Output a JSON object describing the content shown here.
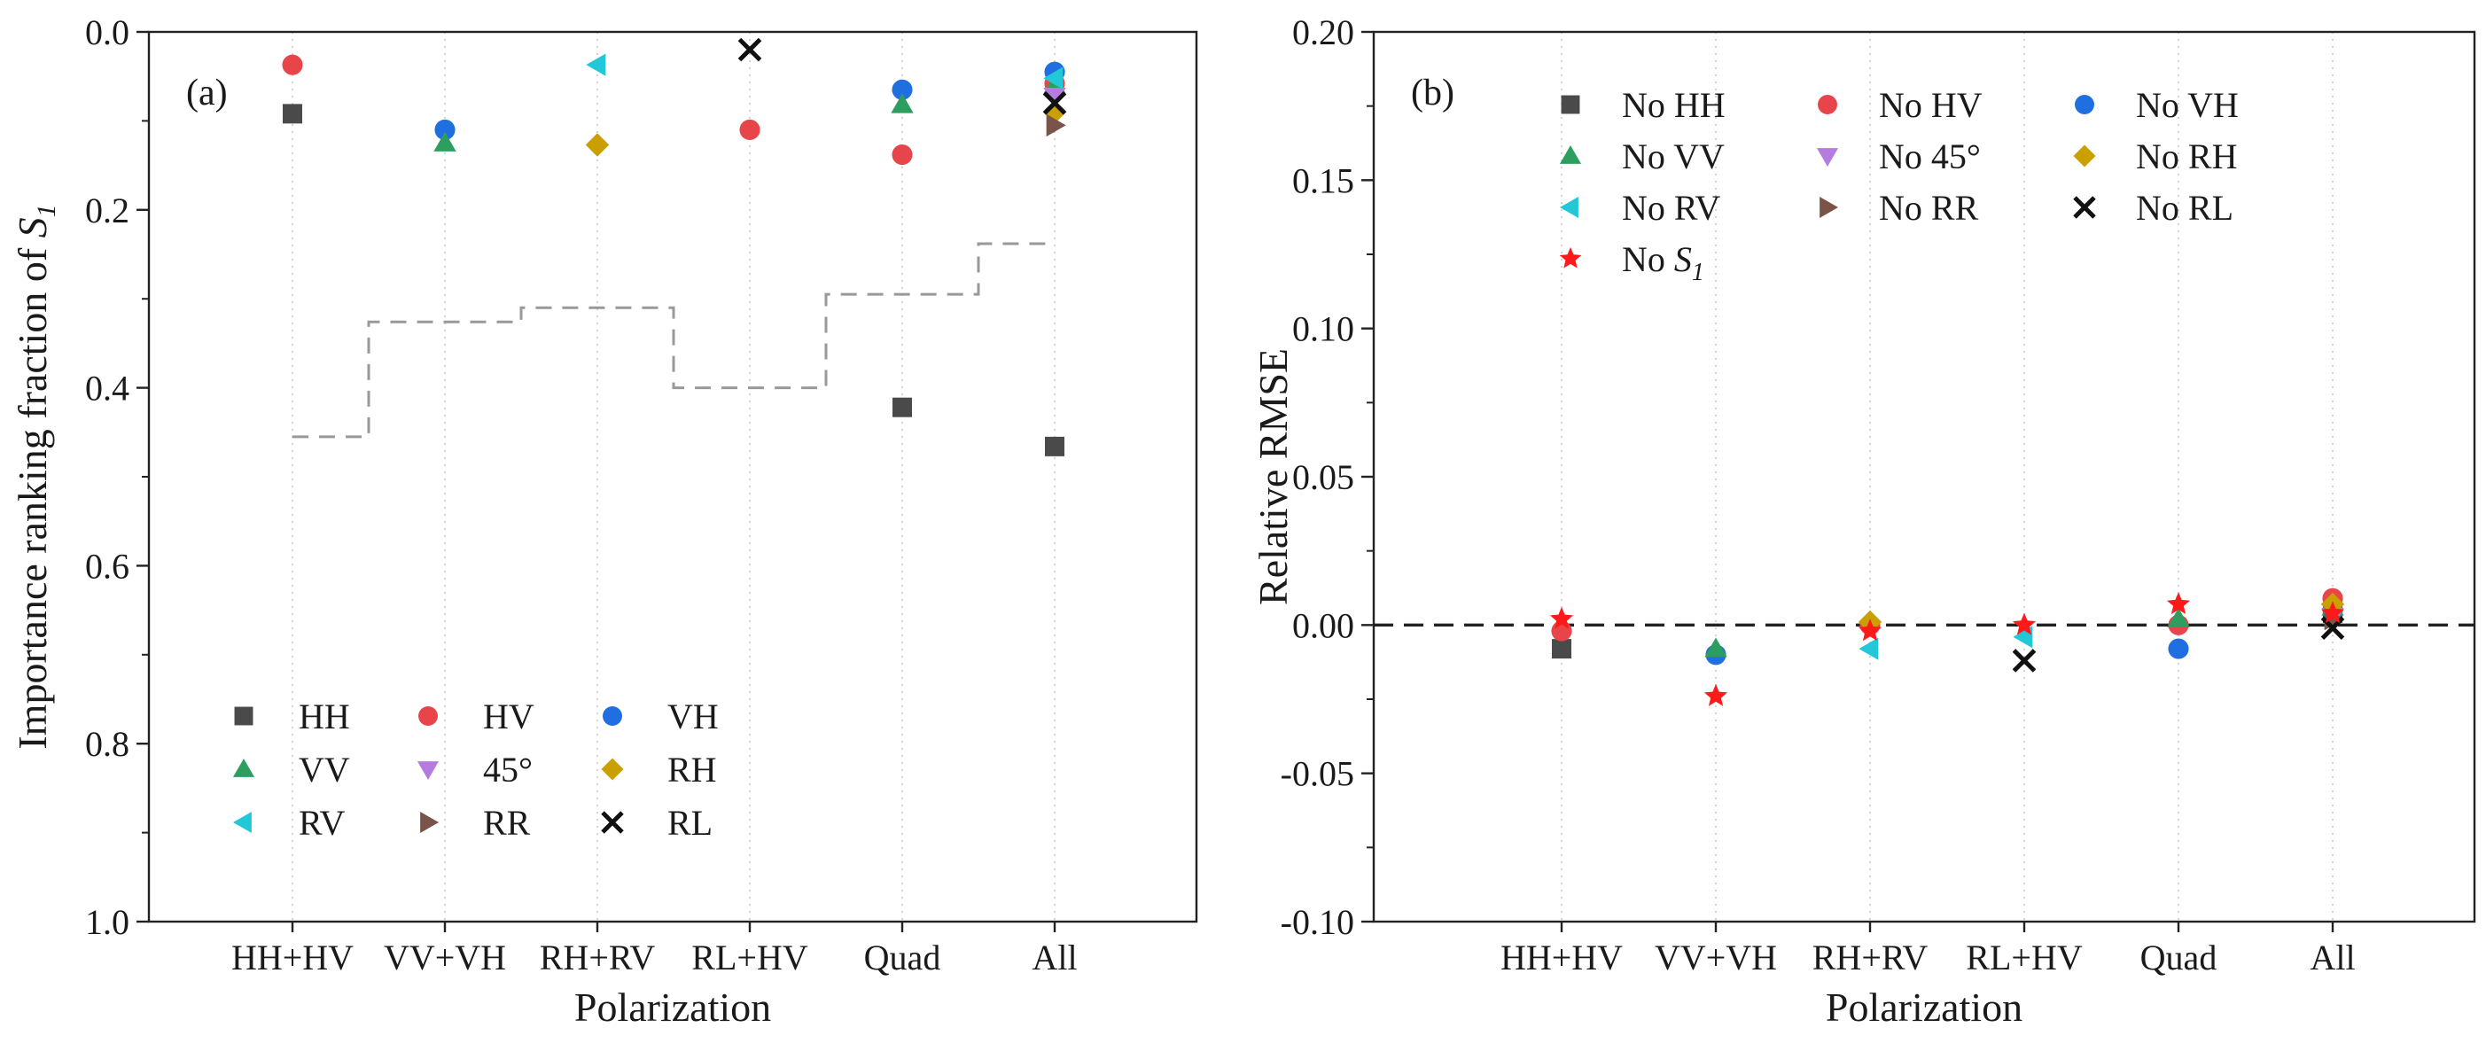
{
  "chart_data": [
    {
      "panel": "(a)",
      "type": "scatter",
      "xlabel": "Polarization",
      "ylabel_main": "Importance ranking fraction of ",
      "ylabel_sym": "S",
      "ylabel_sub": "1",
      "ylim": [
        1.0,
        0.0
      ],
      "y_inverted": true,
      "yticks": [
        "0.0",
        "0.2",
        "0.4",
        "0.6",
        "0.8",
        "1.0"
      ],
      "categories": [
        "HH+HV",
        "VV+VH",
        "RH+RV",
        "RL+HV",
        "Quad",
        "All"
      ],
      "legend_position": "lower-left",
      "series": [
        {
          "name": "HH",
          "marker": "square",
          "color": "#4a4a4a",
          "points": [
            [
              0,
              0.092
            ],
            [
              4,
              0.422
            ],
            [
              5,
              0.466
            ]
          ]
        },
        {
          "name": "HV",
          "marker": "circle",
          "color": "#e8454a",
          "points": [
            [
              0,
              0.037
            ],
            [
              3,
              0.11
            ],
            [
              4,
              0.138
            ],
            [
              5,
              0.058
            ]
          ]
        },
        {
          "name": "VH",
          "marker": "circle",
          "color": "#1f6fe0",
          "points": [
            [
              1,
              0.11
            ],
            [
              4,
              0.065
            ],
            [
              5,
              0.045
            ]
          ]
        },
        {
          "name": "VV",
          "marker": "triangle-up",
          "color": "#2e9e60",
          "points": [
            [
              1,
              0.125
            ],
            [
              4,
              0.082
            ],
            [
              5,
              0.06
            ]
          ]
        },
        {
          "name": "45°",
          "marker": "triangle-down",
          "color": "#b57be0",
          "points": [
            [
              5,
              0.072
            ]
          ]
        },
        {
          "name": "RH",
          "marker": "diamond",
          "color": "#c9a000",
          "points": [
            [
              2,
              0.127
            ],
            [
              5,
              0.09
            ]
          ]
        },
        {
          "name": "RV",
          "marker": "triangle-left",
          "color": "#22c8d8",
          "points": [
            [
              2,
              0.037
            ],
            [
              5,
              0.052
            ]
          ]
        },
        {
          "name": "RR",
          "marker": "triangle-right",
          "color": "#7a5448",
          "points": [
            [
              5,
              0.105
            ]
          ]
        },
        {
          "name": "RL",
          "marker": "x",
          "color": "#111111",
          "points": [
            [
              3,
              0.02
            ],
            [
              5,
              0.08
            ]
          ]
        }
      ],
      "step_line": {
        "style": "dashed",
        "color": "#999999",
        "steps": [
          [
            0,
            0.455
          ],
          [
            1,
            0.326
          ],
          [
            2,
            0.31
          ],
          [
            3,
            0.4
          ],
          [
            4,
            0.295
          ],
          [
            5,
            0.238
          ]
        ]
      }
    },
    {
      "panel": "(b)",
      "type": "scatter",
      "xlabel": "Polarization",
      "ylabel": "Relative RMSE",
      "ylim": [
        -0.1,
        0.2
      ],
      "yticks": [
        "-0.10",
        "-0.05",
        "0.00",
        "0.05",
        "0.10",
        "0.15",
        "0.20"
      ],
      "categories": [
        "HH+HV",
        "VV+VH",
        "RH+RV",
        "RL+HV",
        "Quad",
        "All"
      ],
      "reference_line": {
        "y": 0.0,
        "style": "dashed",
        "color": "#222222"
      },
      "legend_position": "top-left",
      "series": [
        {
          "name": "No HH",
          "marker": "square",
          "color": "#4a4a4a",
          "points": [
            [
              0,
              -0.008
            ],
            [
              5,
              0.004
            ]
          ]
        },
        {
          "name": "No HV",
          "marker": "circle",
          "color": "#e8454a",
          "points": [
            [
              0,
              -0.002
            ],
            [
              2,
              0.0
            ],
            [
              4,
              0.0
            ],
            [
              5,
              0.009
            ]
          ]
        },
        {
          "name": "No VH",
          "marker": "circle",
          "color": "#1f6fe0",
          "points": [
            [
              1,
              -0.01
            ],
            [
              4,
              -0.008
            ],
            [
              5,
              0.005
            ]
          ]
        },
        {
          "name": "No VV",
          "marker": "triangle-up",
          "color": "#2e9e60",
          "points": [
            [
              1,
              -0.008
            ],
            [
              4,
              0.002
            ],
            [
              5,
              0.006
            ]
          ]
        },
        {
          "name": "No 45°",
          "marker": "triangle-down",
          "color": "#b57be0",
          "points": [
            [
              5,
              0.003
            ]
          ]
        },
        {
          "name": "No RH",
          "marker": "diamond",
          "color": "#c9a000",
          "points": [
            [
              2,
              0.001
            ],
            [
              5,
              0.007
            ]
          ]
        },
        {
          "name": "No RV",
          "marker": "triangle-left",
          "color": "#22c8d8",
          "points": [
            [
              2,
              -0.008
            ],
            [
              3,
              -0.004
            ]
          ]
        },
        {
          "name": "No RR",
          "marker": "triangle-right",
          "color": "#7a5448",
          "points": [
            [
              5,
              0.002
            ]
          ]
        },
        {
          "name": "No RL",
          "marker": "x",
          "color": "#111111",
          "points": [
            [
              3,
              -0.012
            ],
            [
              5,
              -0.001
            ]
          ]
        },
        {
          "name": "No ",
          "name_sym": "S",
          "name_sub": "1",
          "marker": "star",
          "color": "#ff1a1a",
          "points": [
            [
              0,
              0.002
            ],
            [
              1,
              -0.024
            ],
            [
              2,
              -0.002
            ],
            [
              3,
              0.0
            ],
            [
              4,
              0.007
            ],
            [
              5,
              0.004
            ]
          ]
        }
      ]
    }
  ]
}
